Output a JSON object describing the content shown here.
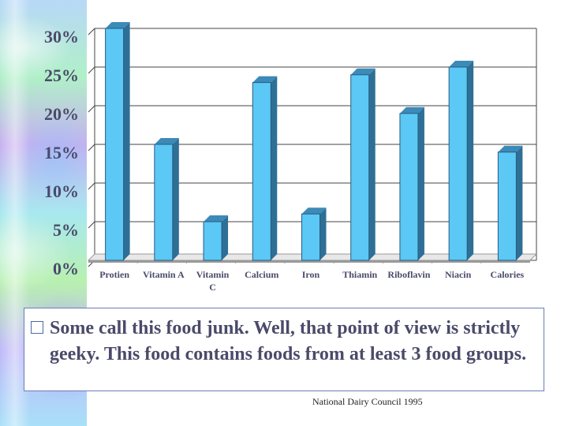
{
  "chart_data": {
    "type": "bar",
    "categories": [
      "Protien",
      "Vitamin A",
      "Vitamin C",
      "Calcium",
      "Iron",
      "Thiamin",
      "Riboflavin",
      "Niacin",
      "Calories"
    ],
    "category_lines": [
      [
        "Protien"
      ],
      [
        "Vitamin A"
      ],
      [
        "Vitamin",
        "C"
      ],
      [
        "Calcium"
      ],
      [
        "Iron"
      ],
      [
        "Thiamin"
      ],
      [
        "Riboflavin"
      ],
      [
        "Niacin"
      ],
      [
        "Calories"
      ]
    ],
    "values": [
      30,
      15,
      5,
      23,
      6,
      24,
      19,
      25,
      14
    ],
    "ylim": [
      0,
      30
    ],
    "yticks": [
      "0%",
      "5%",
      "10%",
      "15%",
      "20%",
      "25%",
      "30%"
    ],
    "ytick_values": [
      0,
      5,
      10,
      15,
      20,
      25,
      30
    ],
    "grid": true,
    "colors": {
      "bar_front": "#5bc8f5",
      "bar_side": "#2e6f96",
      "bar_top": "#3c8ab8",
      "grid": "#444444",
      "floor": "#9a9a9a"
    }
  },
  "body_text": "Some call this food junk.  Well, that point of view is strictly geeky.  This food contains foods from at least 3 food groups.",
  "source": "National Dairy Council 1995"
}
